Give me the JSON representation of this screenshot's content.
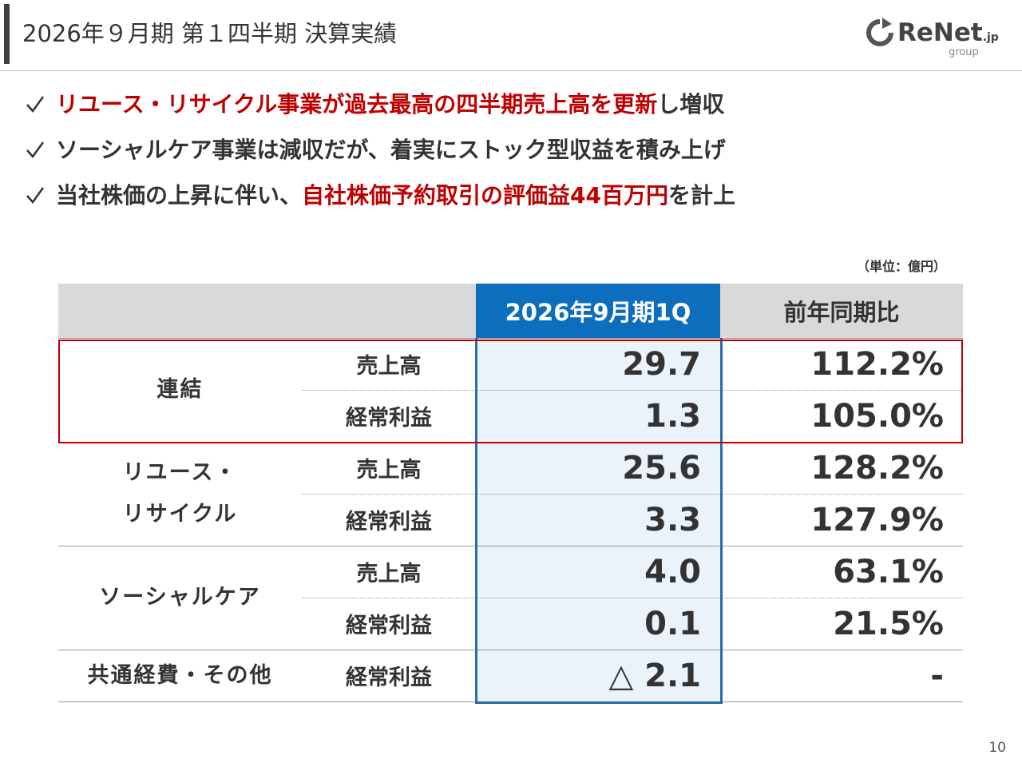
{
  "header": {
    "title": "2026年９月期 第１四半期 決算実績",
    "logo": {
      "name": "ReNet",
      "suffix": ".jp",
      "sub": "group"
    }
  },
  "bullets": [
    [
      {
        "text": "リユース・リサイクル事業が過去最高の四半期売上高を更新",
        "highlight": true
      },
      {
        "text": "し増収",
        "highlight": false
      }
    ],
    [
      {
        "text": "ソーシャルケア事業は減収だが、着実にストック型収益を積み上げ",
        "highlight": false
      }
    ],
    [
      {
        "text": "当社株価の上昇に伴い、",
        "highlight": false
      },
      {
        "text": "自社株価予約取引の評価益44百万円",
        "highlight": true
      },
      {
        "text": "を計上",
        "highlight": false
      }
    ]
  ],
  "table": {
    "unit": "（単位：億円）",
    "columns": [
      "2026年9月期1Q",
      "前年同期比"
    ],
    "groups": [
      {
        "segment": [
          "連結"
        ],
        "rows": [
          {
            "item": "売上高",
            "value": "29.7",
            "yoy": "112.2%"
          },
          {
            "item": "経常利益",
            "value": "1.3",
            "yoy": "105.0%"
          }
        ]
      },
      {
        "segment": [
          "リユース・",
          "リサイクル"
        ],
        "rows": [
          {
            "item": "売上高",
            "value": "25.6",
            "yoy": "128.2%"
          },
          {
            "item": "経常利益",
            "value": "3.3",
            "yoy": "127.9%"
          }
        ]
      },
      {
        "segment": [
          "ソーシャルケア"
        ],
        "rows": [
          {
            "item": "売上高",
            "value": "4.0",
            "yoy": "63.1%"
          },
          {
            "item": "経常利益",
            "value": "0.1",
            "yoy": "21.5%"
          }
        ]
      },
      {
        "segment": [
          "共通経費・その他"
        ],
        "rows": [
          {
            "item": "経常利益",
            "value": "△ 2.1",
            "yoy": "-"
          }
        ]
      }
    ]
  },
  "page_number": "10"
}
